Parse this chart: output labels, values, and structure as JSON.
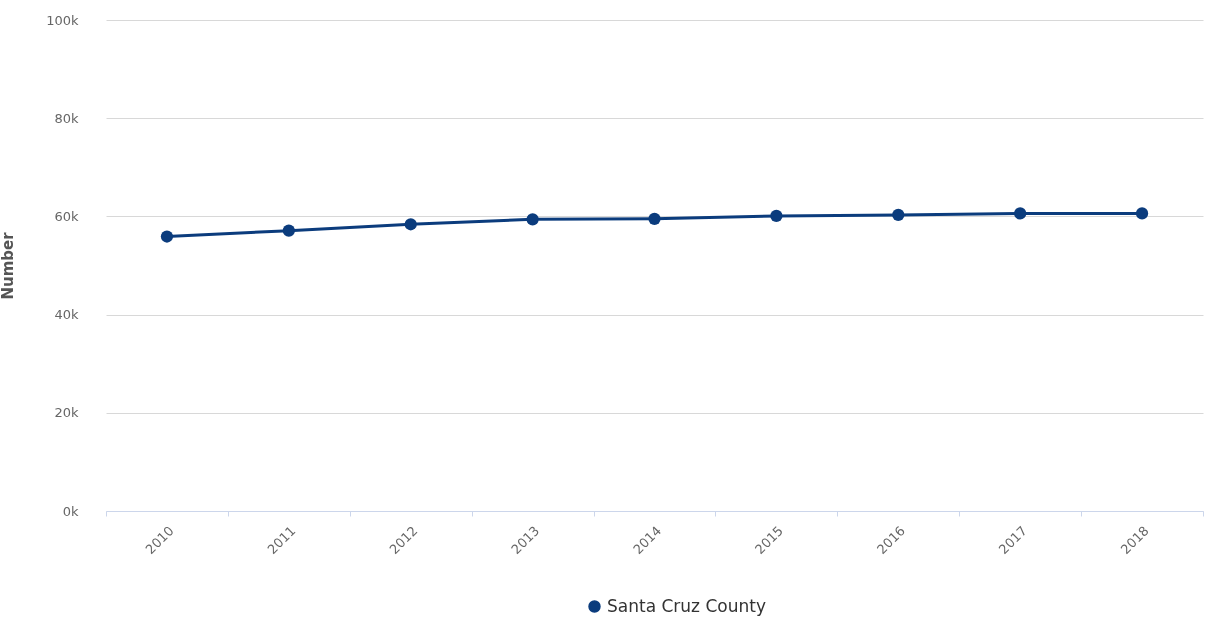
{
  "chart_data": {
    "type": "line",
    "ylabel": "Number",
    "categories": [
      "2010",
      "2011",
      "2012",
      "2013",
      "2014",
      "2015",
      "2016",
      "2017",
      "2018"
    ],
    "series": [
      {
        "name": "Santa Cruz County",
        "color": "#0b3c7d",
        "values": [
          55900,
          57100,
          58400,
          59400,
          59500,
          60100,
          60300,
          60600,
          60600
        ]
      }
    ],
    "ylim": [
      0,
      100000
    ],
    "yticks": [
      {
        "value": 0,
        "label": "0k"
      },
      {
        "value": 20000,
        "label": "20k"
      },
      {
        "value": 40000,
        "label": "40k"
      },
      {
        "value": 60000,
        "label": "60k"
      },
      {
        "value": 80000,
        "label": "80k"
      },
      {
        "value": 100000,
        "label": "100k"
      }
    ],
    "grid": "y",
    "legend": "bottom",
    "marker": "circle",
    "line_style": "solid"
  }
}
